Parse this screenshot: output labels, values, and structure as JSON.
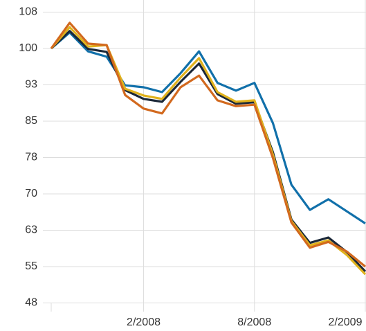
{
  "chart_data": {
    "type": "line",
    "categories": [
      null,
      null,
      null,
      null,
      null,
      "2/2008",
      null,
      null,
      null,
      null,
      null,
      "8/2008",
      null,
      null,
      null,
      null,
      null,
      "2/2009"
    ],
    "series": [
      {
        "color": "#1170aa",
        "values": [
          100,
          103.3,
          99.4,
          98.3,
          92.4,
          92,
          91,
          94.9,
          99.4,
          92.9,
          91.3,
          92.9,
          84.6,
          71.9,
          66.7,
          68.9,
          66.4,
          63.9
        ]
      },
      {
        "color": "#1b2838",
        "values": [
          100,
          103.6,
          99.9,
          99.3,
          91.4,
          89.6,
          89,
          93.1,
          96.9,
          90.6,
          88.6,
          88.9,
          78.6,
          64.7,
          59.9,
          61,
          58,
          54
        ]
      },
      {
        "color": "#e0b21c",
        "values": [
          100,
          104.4,
          100.4,
          100.7,
          91.7,
          90.3,
          89.6,
          94,
          98,
          91,
          89,
          89.3,
          78.1,
          64.4,
          59.4,
          60.4,
          57.4,
          53.4
        ]
      },
      {
        "color": "#d2691e",
        "values": [
          100,
          105.3,
          101,
          100.7,
          90.4,
          87.6,
          86.6,
          92,
          94.4,
          89.3,
          88.1,
          88.4,
          77.4,
          64.1,
          58.9,
          60.1,
          58.1,
          55
        ]
      }
    ],
    "ylim": [
      47.5,
      110
    ],
    "yticks": [
      {
        "value": 47.5,
        "label": "48"
      },
      55,
      {
        "value": 62.5,
        "label": "63"
      },
      70,
      {
        "value": 77.5,
        "label": "78"
      },
      85,
      {
        "value": 92.5,
        "label": "93"
      },
      100,
      {
        "value": 107.5,
        "label": "108"
      }
    ],
    "grid": true
  }
}
